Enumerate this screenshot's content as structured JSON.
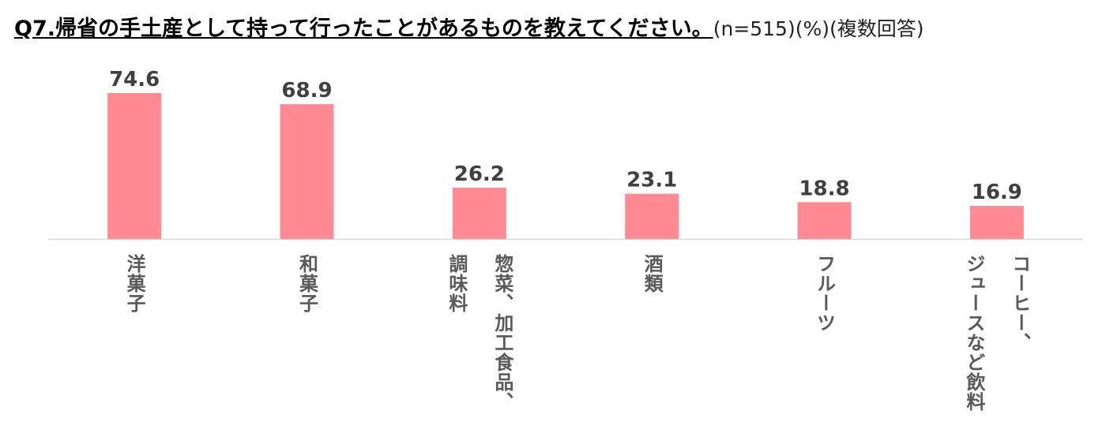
{
  "chart_data": {
    "type": "bar",
    "title": "Q7.帰省の手土産として持って行ったことがあるものを教えてください。",
    "subtitle": "(n=515)(%)(複数回答)",
    "categories": [
      "洋菓子",
      "和菓子",
      "惣菜、加工食品、\n調味料",
      "酒類",
      "フルーツ",
      "コーヒー、\nジュースなど飲料"
    ],
    "values": [
      74.6,
      68.9,
      26.2,
      23.1,
      18.8,
      16.9
    ],
    "color": "#ff8a94"
  }
}
